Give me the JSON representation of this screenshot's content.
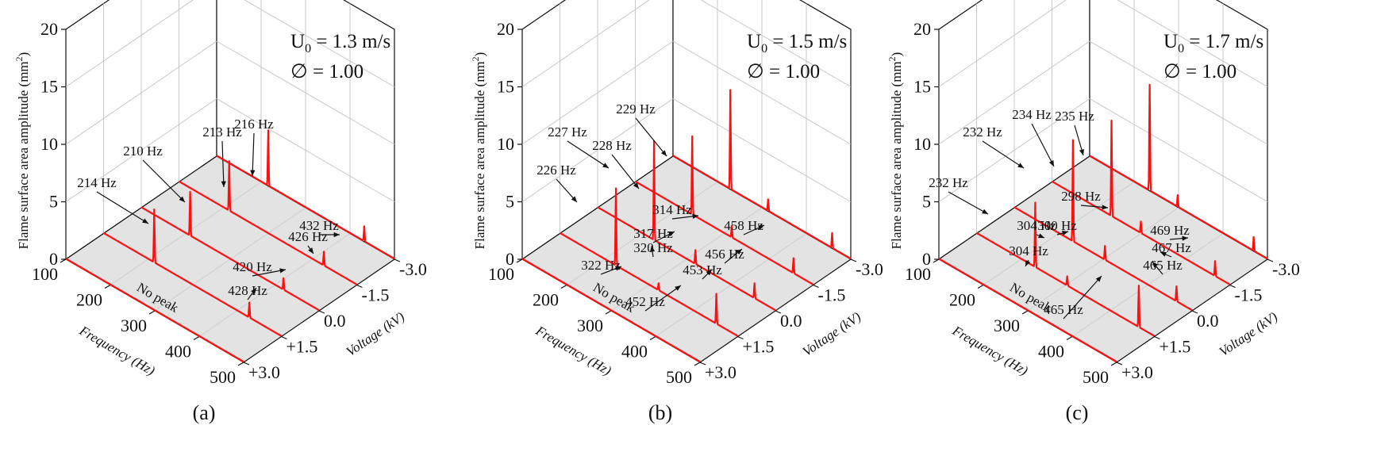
{
  "chart_data": [
    {
      "type": "line",
      "panel_label": "(a)",
      "annotation_velocity": "U",
      "annotation_velocity_sub": "0",
      "annotation_velocity_value": " = 1.3 m/s",
      "annotation_phi": "∅ = 1.00",
      "ylabel": "Flame surface area amplitude (mm",
      "ylabel_sup": "2",
      "ylabel_end": ")",
      "xlabel": "Frequency (Hz)",
      "zlabel": "Voltage (kV)",
      "xlim": [
        100,
        500
      ],
      "ylim": [
        0,
        20
      ],
      "x_ticks": [
        "100",
        "200",
        "300",
        "400",
        "500"
      ],
      "y_ticks": [
        "0",
        "5",
        "10",
        "15",
        "20"
      ],
      "voltage_ticks": [
        "+3.0",
        "+1.5",
        "0.0",
        "-1.5",
        "-3.0"
      ],
      "no_peak_label": "No peak",
      "series": [
        {
          "voltage": 3.0,
          "peaks": []
        },
        {
          "voltage": 1.5,
          "peaks": [
            {
              "f": 214,
              "a": 4.6,
              "label": "214 Hz"
            },
            {
              "f": 428,
              "a": 1.3,
              "label": "428 Hz"
            }
          ]
        },
        {
          "voltage": 0.0,
          "peaks": [
            {
              "f": 210,
              "a": 3.8,
              "label": "210 Hz"
            },
            {
              "f": 420,
              "a": 1.0,
              "label": "420 Hz"
            }
          ]
        },
        {
          "voltage": -1.5,
          "peaks": [
            {
              "f": 213,
              "a": 4.3,
              "label": "213 Hz"
            },
            {
              "f": 426,
              "a": 1.2,
              "label": "426 Hz"
            }
          ]
        },
        {
          "voltage": -3.0,
          "peaks": [
            {
              "f": 216,
              "a": 4.8,
              "label": "216 Hz"
            },
            {
              "f": 432,
              "a": 1.3,
              "label": "432 Hz"
            }
          ]
        }
      ]
    },
    {
      "type": "line",
      "panel_label": "(b)",
      "annotation_velocity": "U",
      "annotation_velocity_sub": "0",
      "annotation_velocity_value": " = 1.5 m/s",
      "annotation_phi": "∅ = 1.00",
      "ylabel": "Flame surface area amplitude (mm",
      "ylabel_sup": "2",
      "ylabel_end": ")",
      "xlabel": "Frequency (Hz)",
      "zlabel": "Voltage (kV)",
      "xlim": [
        100,
        500
      ],
      "ylim": [
        0,
        20
      ],
      "x_ticks": [
        "100",
        "200",
        "300",
        "400",
        "500"
      ],
      "y_ticks": [
        "0",
        "5",
        "10",
        "15",
        "20"
      ],
      "voltage_ticks": [
        "+3.0",
        "+1.5",
        "0.0",
        "-1.5",
        "-3.0"
      ],
      "no_peak_label": "No peak",
      "series": [
        {
          "voltage": 3.0,
          "peaks": []
        },
        {
          "voltage": 1.5,
          "peaks": [
            {
              "f": 226,
              "a": 6.7,
              "label": "226 Hz"
            },
            {
              "f": 322,
              "a": 0.6,
              "label": "322 Hz"
            },
            {
              "f": 452,
              "a": 2.6,
              "label": "452 Hz"
            }
          ]
        },
        {
          "voltage": 0.0,
          "peaks": [
            {
              "f": 227,
              "a": 8.6,
              "label": "227 Hz"
            },
            {
              "f": 320,
              "a": 1.2,
              "label": "320 Hz"
            },
            {
              "f": 453,
              "a": 1.3,
              "label": "453 Hz"
            }
          ]
        },
        {
          "voltage": -1.5,
          "peaks": [
            {
              "f": 228,
              "a": 6.8,
              "label": "228 Hz"
            },
            {
              "f": 317,
              "a": 1.0,
              "label": "317 Hz"
            },
            {
              "f": 456,
              "a": 1.3,
              "label": "456 Hz"
            }
          ]
        },
        {
          "voltage": -3.0,
          "peaks": [
            {
              "f": 229,
              "a": 8.6,
              "label": "229 Hz"
            },
            {
              "f": 314,
              "a": 1.0,
              "label": "314 Hz"
            },
            {
              "f": 458,
              "a": 1.3,
              "label": "458 Hz"
            }
          ]
        }
      ]
    },
    {
      "type": "line",
      "panel_label": "(c)",
      "annotation_velocity": "U",
      "annotation_velocity_sub": "0",
      "annotation_velocity_value": " = 1.7 m/s",
      "annotation_phi": "∅ = 1.00",
      "ylabel": "Flame surface area amplitude (mm",
      "ylabel_sup": "2",
      "ylabel_end": ")",
      "xlabel": "Frequency (Hz)",
      "zlabel": "Voltage (kV)",
      "xlim": [
        100,
        500
      ],
      "ylim": [
        0,
        20
      ],
      "x_ticks": [
        "100",
        "200",
        "300",
        "400",
        "500"
      ],
      "y_ticks": [
        "0",
        "5",
        "10",
        "15",
        "20"
      ],
      "voltage_ticks": [
        "+3.0",
        "+1.5",
        "0.0",
        "-1.5",
        "-3.0"
      ],
      "no_peak_label": "No peak",
      "series": [
        {
          "voltage": 3.0,
          "peaks": []
        },
        {
          "voltage": 1.5,
          "peaks": [
            {
              "f": 232,
              "a": 5.6,
              "label": "232 Hz"
            },
            {
              "f": 304,
              "a": 0.8,
              "label": "304 Hz"
            },
            {
              "f": 465,
              "a": 3.6,
              "label": "465 Hz"
            }
          ]
        },
        {
          "voltage": 0.0,
          "peaks": [
            {
              "f": 232,
              "a": 8.8,
              "label": "232 Hz"
            },
            {
              "f": 304,
              "a": 1.2,
              "label": "304 Hz"
            },
            {
              "f": 465,
              "a": 1.3,
              "label": "465 Hz"
            }
          ]
        },
        {
          "voltage": -1.5,
          "peaks": [
            {
              "f": 234,
              "a": 8.3,
              "label": "234 Hz"
            },
            {
              "f": 300,
              "a": 1.0,
              "label": "300 Hz"
            },
            {
              "f": 467,
              "a": 1.3,
              "label": "467 Hz"
            }
          ]
        },
        {
          "voltage": -3.0,
          "peaks": [
            {
              "f": 235,
              "a": 9.2,
              "label": "235 Hz"
            },
            {
              "f": 298,
              "a": 1.0,
              "label": "298 Hz"
            },
            {
              "f": 469,
              "a": 1.2,
              "label": "469 Hz"
            }
          ]
        }
      ]
    }
  ],
  "colors": {
    "trace": "#ff1010",
    "floor": "#e3e3e3",
    "grid": "#c8c8c8",
    "axis": "#111111"
  }
}
